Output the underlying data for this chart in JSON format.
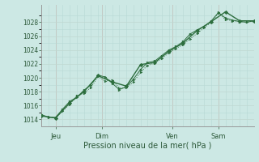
{
  "background_color": "#cce8e4",
  "grid_color_minor": "#b8d8d4",
  "grid_color_major": "#c0d8d0",
  "line_color": "#2d6e3e",
  "title": "Pression niveau de la mer( hPa )",
  "ylabel_ticks": [
    1014,
    1016,
    1018,
    1020,
    1022,
    1024,
    1026,
    1028
  ],
  "xlim": [
    0,
    120
  ],
  "ylim": [
    1013.0,
    1030.5
  ],
  "day_labels": [
    [
      "Jeu",
      8
    ],
    [
      "Dim",
      34
    ],
    [
      "Ven",
      74
    ],
    [
      "Sam",
      100
    ]
  ],
  "day_vlines": [
    8,
    34,
    74,
    100
  ],
  "series1_x": [
    0,
    4,
    8,
    12,
    16,
    20,
    24,
    28,
    32,
    36,
    40,
    44,
    48,
    52,
    56,
    60,
    64,
    68,
    72,
    76,
    80,
    84,
    88,
    92,
    96,
    100,
    104,
    108,
    112,
    116,
    120
  ],
  "series1_y": [
    1014.6,
    1014.4,
    1014.2,
    1015.2,
    1016.2,
    1017.4,
    1017.8,
    1018.6,
    1020.2,
    1019.5,
    1019.7,
    1018.5,
    1018.6,
    1019.4,
    1020.8,
    1021.8,
    1022.1,
    1022.8,
    1023.6,
    1024.2,
    1024.8,
    1025.6,
    1026.4,
    1027.2,
    1028.0,
    1029.3,
    1028.4,
    1028.2,
    1028.1,
    1028.0,
    1028.2
  ],
  "series2_x": [
    0,
    4,
    8,
    12,
    16,
    20,
    24,
    28,
    32,
    36,
    40,
    44,
    48,
    52,
    56,
    60,
    64,
    68,
    72,
    76,
    80,
    84,
    88,
    92,
    96,
    100,
    104,
    108,
    112,
    116,
    120
  ],
  "series2_y": [
    1014.7,
    1014.3,
    1014.3,
    1015.5,
    1016.6,
    1017.2,
    1018.2,
    1019.0,
    1020.4,
    1020.1,
    1019.2,
    1018.3,
    1018.7,
    1019.8,
    1021.2,
    1022.2,
    1022.4,
    1023.2,
    1024.0,
    1024.5,
    1025.2,
    1026.3,
    1026.9,
    1027.4,
    1028.2,
    1029.4,
    1028.6,
    1028.3,
    1028.1,
    1028.0,
    1028.2
  ],
  "series3_x": [
    0,
    8,
    16,
    24,
    32,
    40,
    48,
    56,
    64,
    72,
    80,
    88,
    96,
    104,
    112,
    120
  ],
  "series3_y": [
    1014.5,
    1014.2,
    1016.4,
    1018.0,
    1020.3,
    1019.4,
    1018.8,
    1021.9,
    1022.2,
    1023.8,
    1025.0,
    1026.8,
    1028.1,
    1029.5,
    1028.2,
    1028.2
  ]
}
